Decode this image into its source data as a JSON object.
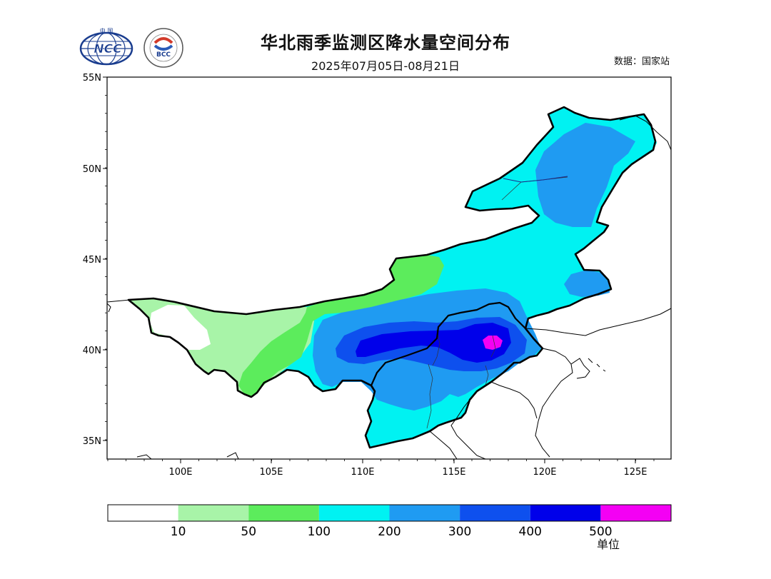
{
  "header": {
    "title": "华北雨季监测区降水量空间分布",
    "subtitle": "2025年07月05日-08月21日",
    "source": "数据：国家站"
  },
  "logos": {
    "ncc": {
      "text": "NCC",
      "top_text": "中 国"
    },
    "bcc": {
      "text": "BCC"
    }
  },
  "map": {
    "lat_ticks": [
      "55N",
      "50N",
      "45N",
      "40N",
      "35N"
    ],
    "lon_ticks": [
      "100E",
      "105E",
      "110E",
      "115E",
      "120E",
      "125E"
    ]
  },
  "legend": {
    "colors": [
      "#ffffff",
      "#a8f4a8",
      "#5cec5c",
      "#00f2f2",
      "#1f9bf2",
      "#0e50ee",
      "#0000ea",
      "#f400f4"
    ],
    "labels": [
      "10",
      "50",
      "100",
      "200",
      "300",
      "400",
      "500"
    ],
    "unit_label": "单位"
  },
  "palette": {
    "white": "#ffffff",
    "lightgreen": "#a8f4a8",
    "green": "#5cec5c",
    "cyan": "#00f2f2",
    "lightblue": "#1f9bf2",
    "blue": "#0e50ee",
    "darkblue": "#0000ea",
    "magenta": "#f400f4"
  }
}
